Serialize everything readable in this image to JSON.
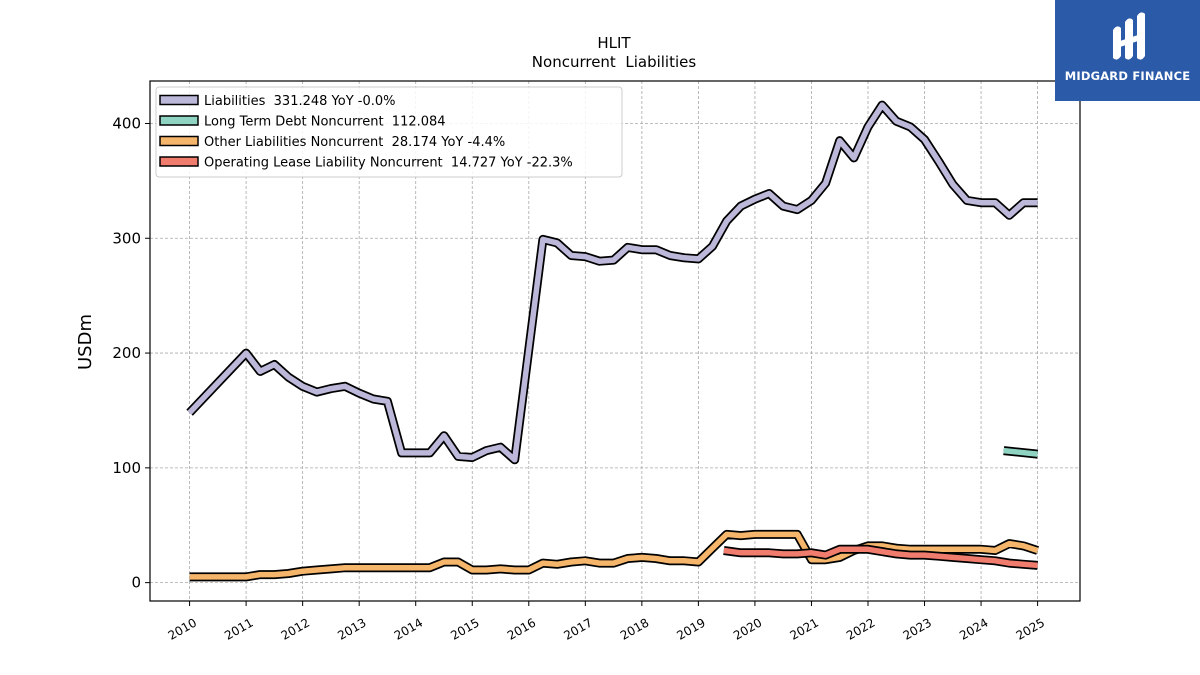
{
  "chart_data": {
    "type": "line",
    "title": "HLIT",
    "subtitle": "Noncurrent  Liabilities",
    "ylabel": "USDm",
    "xlabel": "",
    "ylim": [
      -16,
      437
    ],
    "xlim": [
      2009.3,
      2025.75
    ],
    "yticks": [
      0,
      100,
      200,
      300,
      400
    ],
    "xticks": [
      "2010",
      "2011",
      "2012",
      "2013",
      "2014",
      "2015",
      "2016",
      "2017",
      "2018",
      "2019",
      "2020",
      "2021",
      "2022",
      "2023",
      "2024",
      "2025"
    ],
    "grid": true,
    "legend_position": "top-left",
    "series": [
      {
        "name": "Liabilities",
        "legend": "Liabilities  331.248 YoY -0.0%",
        "color": "#bcb8d9",
        "x": [
          2010.0,
          2011.0,
          2011.25,
          2011.5,
          2011.75,
          2012.0,
          2012.25,
          2012.5,
          2012.75,
          2013.0,
          2013.25,
          2013.5,
          2013.75,
          2014.0,
          2014.25,
          2014.5,
          2014.75,
          2015.0,
          2015.25,
          2015.5,
          2015.75,
          2016.0,
          2016.25,
          2016.5,
          2016.75,
          2017.0,
          2017.25,
          2017.5,
          2017.75,
          2018.0,
          2018.25,
          2018.5,
          2018.75,
          2019.0,
          2019.25,
          2019.5,
          2019.75,
          2020.0,
          2020.25,
          2020.5,
          2020.75,
          2021.0,
          2021.25,
          2021.5,
          2021.75,
          2022.0,
          2022.25,
          2022.5,
          2022.75,
          2023.0,
          2023.25,
          2023.5,
          2023.75,
          2024.0,
          2024.25,
          2024.5,
          2024.75,
          2025.0
        ],
        "values": [
          148,
          200,
          184,
          190,
          179,
          171,
          166,
          169,
          171,
          165,
          160,
          158,
          113,
          113,
          113,
          128,
          110,
          109,
          115,
          118,
          107,
          203,
          299,
          296,
          285,
          284,
          280,
          281,
          292,
          290,
          290,
          285,
          283,
          282,
          293,
          315,
          328,
          334,
          339,
          328,
          325,
          333,
          348,
          385,
          370,
          397,
          416,
          402,
          397,
          386,
          367,
          347,
          333,
          331,
          331,
          320,
          331,
          331
        ]
      },
      {
        "name": "Long Term Debt Noncurrent",
        "legend": "Long Term Debt Noncurrent  112.084",
        "color": "#8fd4c2",
        "x": [
          2024.4,
          2025.0
        ],
        "values": [
          115,
          112
        ]
      },
      {
        "name": "Other Liabilities Noncurrent",
        "legend": "Other Liabilities Noncurrent  28.174 YoY -4.4%",
        "color": "#f5b66b",
        "x": [
          2010.0,
          2011.0,
          2011.25,
          2011.5,
          2011.75,
          2012.0,
          2012.25,
          2012.5,
          2012.75,
          2013.0,
          2013.25,
          2013.5,
          2013.75,
          2014.0,
          2014.25,
          2014.5,
          2014.75,
          2015.0,
          2015.25,
          2015.5,
          2015.75,
          2016.0,
          2016.25,
          2016.5,
          2016.75,
          2017.0,
          2017.25,
          2017.5,
          2017.75,
          2018.0,
          2018.25,
          2018.5,
          2018.75,
          2019.0,
          2019.25,
          2019.5,
          2019.75,
          2020.0,
          2020.25,
          2020.5,
          2020.75,
          2021.0,
          2021.25,
          2021.5,
          2021.75,
          2022.0,
          2022.25,
          2022.5,
          2022.75,
          2023.0,
          2023.25,
          2023.5,
          2023.75,
          2024.0,
          2024.25,
          2024.5,
          2024.75,
          2025.0
        ],
        "values": [
          5,
          5,
          7,
          7,
          8,
          10,
          11,
          12,
          13,
          13,
          13,
          13,
          13,
          13,
          13,
          18,
          18,
          11,
          11,
          12,
          11,
          11,
          17,
          16,
          18,
          19,
          17,
          17,
          21,
          22,
          21,
          19,
          19,
          18,
          30,
          42,
          41,
          42,
          42,
          42,
          42,
          20,
          20,
          22,
          28,
          32,
          32,
          30,
          29,
          29,
          29,
          29,
          29,
          29,
          28,
          34,
          32,
          28
        ]
      },
      {
        "name": "Operating Lease Liability Noncurrent",
        "legend": "Operating Lease Liability Noncurrent  14.727 YoY -22.3%",
        "color": "#f07c6e",
        "x": [
          2019.45,
          2019.75,
          2020.0,
          2020.25,
          2020.5,
          2020.75,
          2021.0,
          2021.25,
          2021.5,
          2021.75,
          2022.0,
          2022.25,
          2022.5,
          2022.75,
          2023.0,
          2023.25,
          2023.5,
          2023.75,
          2024.0,
          2024.25,
          2024.5,
          2024.75,
          2025.0
        ],
        "values": [
          28,
          26,
          26,
          26,
          25,
          25,
          26,
          24,
          29,
          29,
          29,
          27,
          25,
          24,
          24,
          23,
          22,
          21,
          20,
          19,
          17,
          16,
          15
        ]
      }
    ]
  },
  "logo": {
    "text": "MIDGARD FINANCE",
    "color": "#2b5aa8"
  }
}
